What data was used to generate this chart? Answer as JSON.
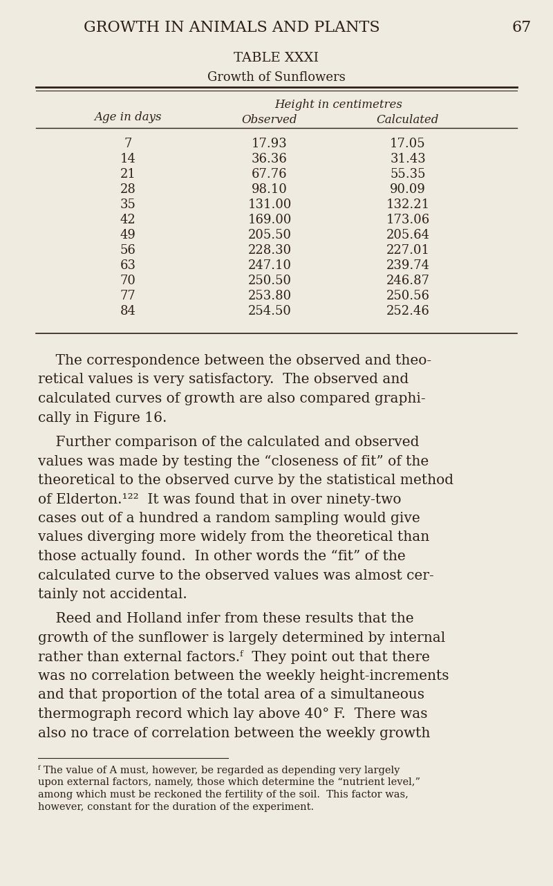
{
  "bg_color": "#f0ebe0",
  "text_color": "#2a2018",
  "page_header": "GROWTH IN ANIMALS AND PLANTS",
  "page_number": "67",
  "table_title": "TABLE XXXI",
  "table_subtitle": "Growth of Sunflowers",
  "col_header_main": "Height in centimetres",
  "col_header_1": "Age in days",
  "col_header_2": "Observed",
  "col_header_3": "Calculated",
  "table_data": [
    [
      7,
      "17.93",
      "17.05"
    ],
    [
      14,
      "36.36",
      "31.43"
    ],
    [
      21,
      "67.76",
      "55.35"
    ],
    [
      28,
      "98.10",
      "90.09"
    ],
    [
      35,
      "131.00",
      "132.21"
    ],
    [
      42,
      "169.00",
      "173.06"
    ],
    [
      49,
      "205.50",
      "205.64"
    ],
    [
      56,
      "228.30",
      "227.01"
    ],
    [
      63,
      "247.10",
      "239.74"
    ],
    [
      70,
      "250.50",
      "246.87"
    ],
    [
      77,
      "253.80",
      "250.56"
    ],
    [
      84,
      "254.50",
      "252.46"
    ]
  ],
  "para1_lines": [
    "    The correspondence between the observed and theo-",
    "retical values is very satisfactory.  The observed and",
    "calculated curves of growth are also compared graphi-",
    "cally in Figure 16."
  ],
  "para2_lines": [
    "    Further comparison of the calculated and observed",
    "values was made by testing the “closeness of fit” of the",
    "theoretical to the observed curve by the statistical method",
    "of Elderton.¹²²  It was found that in over ninety-two",
    "cases out of a hundred a random sampling would give",
    "values diverging more widely from the theoretical than",
    "those actually found.  In other words the “fit” of the",
    "calculated curve to the observed values was almost cer-",
    "tainly not accidental."
  ],
  "para3_lines": [
    "    Reed and Holland infer from these results that the",
    "growth of the sunflower is largely determined by internal",
    "rather than external factors.ᶠ  They point out that there",
    "was no correlation between the weekly height-increments",
    "and that proportion of the total area of a simultaneous",
    "thermograph record which lay above 40° F.  There was",
    "also no trace of correlation between the weekly growth"
  ],
  "footnote_lines": [
    "ᶠ The value of A must, however, be regarded as depending very largely",
    "upon external factors, namely, those which determine the “nutrient level,”",
    "among which must be reckoned the fertility of the soil.  This factor was,",
    "however, constant for the duration of the experiment."
  ]
}
